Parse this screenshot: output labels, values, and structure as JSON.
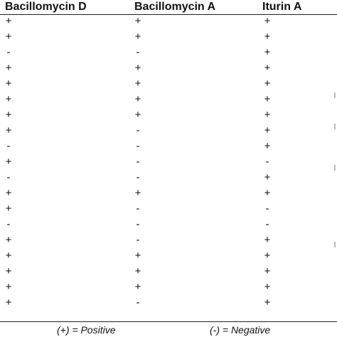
{
  "headers": [
    "Bacillomycin D",
    "Bacillomycin A",
    "Iturin A"
  ],
  "rows": [
    [
      "+",
      "+",
      "+"
    ],
    [
      "+",
      "+",
      "+"
    ],
    [
      "-",
      "-",
      "+"
    ],
    [
      "+",
      "+",
      "+"
    ],
    [
      "+",
      "+",
      "+"
    ],
    [
      "+",
      "+",
      "+"
    ],
    [
      "+",
      "+",
      "+"
    ],
    [
      "+",
      "-",
      "+"
    ],
    [
      "-",
      "-",
      "+"
    ],
    [
      "+",
      "-",
      "-"
    ],
    [
      "-",
      "-",
      "+"
    ],
    [
      "+",
      "+",
      "+"
    ],
    [
      "+",
      "-",
      "-"
    ],
    [
      "-",
      "-",
      "-"
    ],
    [
      "+",
      "-",
      "+"
    ],
    [
      "+",
      "+",
      "+"
    ],
    [
      "+",
      "+",
      "+"
    ],
    [
      "+",
      "+",
      "+"
    ],
    [
      "+",
      "-",
      "+"
    ]
  ],
  "legend": {
    "positive": "(+) = Positive",
    "negative": "(-) = Negative"
  }
}
